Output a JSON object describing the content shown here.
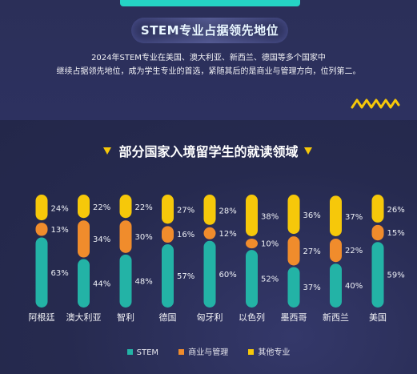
{
  "header": {
    "banner": "STEM专业占据领先地位",
    "intro_line1": "2024年STEM专业在美国、澳大利亚、新西兰、德国等多个国家中",
    "intro_line2": "继续占据领先地位，成为学生专业的首选，紧随其后的是商业与管理方向，位列第二。"
  },
  "colors": {
    "stem": "#23b3a6",
    "business": "#f08c2c",
    "other": "#f6c80a",
    "accent": "#f6c80a",
    "banner_tab": "#25d3c4"
  },
  "chart_data": {
    "type": "bar",
    "stacked": true,
    "title": "部分国家入境留学生的就读领域",
    "categories": [
      "阿根廷",
      "澳大利亚",
      "智利",
      "德国",
      "匈牙利",
      "以色列",
      "墨西哥",
      "新西兰",
      "美国"
    ],
    "series": [
      {
        "name": "STEM",
        "values": [
          63,
          44,
          48,
          57,
          60,
          52,
          37,
          40,
          59
        ]
      },
      {
        "name": "商业与管理",
        "values": [
          13,
          34,
          30,
          16,
          12,
          10,
          27,
          22,
          15
        ]
      },
      {
        "name": "其他专业",
        "values": [
          24,
          22,
          22,
          27,
          28,
          38,
          36,
          37,
          26
        ]
      }
    ],
    "value_suffix": "%",
    "legend_position": "bottom",
    "grid": false
  }
}
